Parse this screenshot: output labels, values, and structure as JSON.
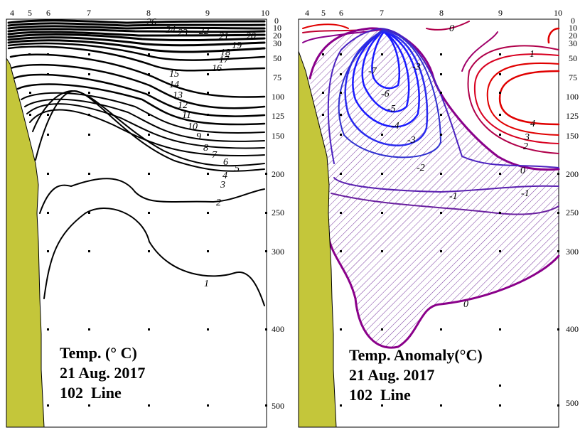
{
  "chart_data": [
    {
      "type": "contour",
      "title": "Temp. (° C)",
      "date": "21 Aug. 2017",
      "line": "102  Line",
      "stations": [
        "4",
        "5",
        "6",
        "7",
        "8",
        "9",
        "10"
      ],
      "depth_ticks": [
        "0",
        "10",
        "20",
        "30",
        "50",
        "75",
        "100",
        "125",
        "150",
        "200",
        "250",
        "300",
        "400",
        "500"
      ],
      "contour_labels": [
        "26",
        "24",
        "23",
        "22",
        "21",
        "20",
        "19",
        "18",
        "17",
        "16",
        "15",
        "14",
        "13",
        "12",
        "11",
        "10",
        "9",
        "8",
        "7",
        "6",
        "5",
        "4",
        "3",
        "2",
        "1"
      ],
      "colors": {
        "line": "#000000",
        "coast": "#c4c63a"
      }
    },
    {
      "type": "contour",
      "title": "Temp. Anomaly(°C)",
      "date": "21 Aug. 2017",
      "line": "102  Line",
      "stations": [
        "4",
        "5",
        "6",
        "7",
        "8",
        "9",
        "10"
      ],
      "depth_ticks": [
        "0",
        "10",
        "20",
        "30",
        "50",
        "75",
        "100",
        "125",
        "150",
        "200",
        "250",
        "300",
        "400",
        "500"
      ],
      "contour_labels": [
        "0",
        "1",
        "2",
        "3",
        "4",
        "-1",
        "-2",
        "-3",
        "-4",
        "-5",
        "-6",
        "-7",
        "0"
      ],
      "shading": "negative anomaly hatched",
      "colors": {
        "positive": "#e00000",
        "zero": "#8a008a",
        "negative": "#1a1aff",
        "hatch": "#7a3aa0",
        "coast": "#c4c63a"
      }
    }
  ]
}
